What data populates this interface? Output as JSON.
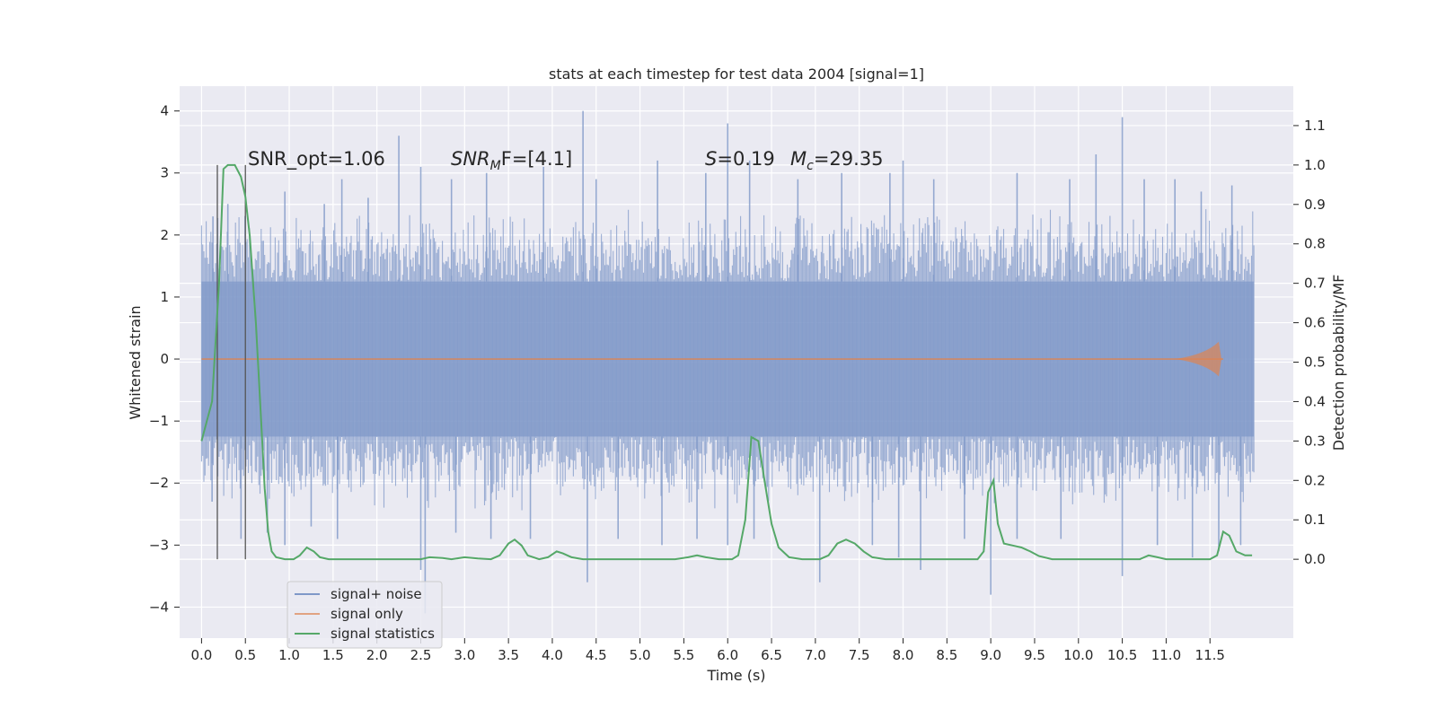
{
  "chart_data": {
    "type": "line",
    "title": "stats at each timestep for test data 2004 [signal=1]",
    "xlabel": "Time (s)",
    "ylabel": "Whitened strain",
    "y2label": "Detection probability/MF",
    "xlim": [
      -0.25,
      12.45
    ],
    "ylim": [
      -4.5,
      4.4
    ],
    "y2lim": [
      -0.2,
      1.2
    ],
    "grid": true,
    "legend_position": "bottom-left",
    "x_ticks": [
      "0.0",
      "0.5",
      "1.0",
      "1.5",
      "2.0",
      "2.5",
      "3.0",
      "3.5",
      "4.0",
      "4.5",
      "5.0",
      "5.5",
      "6.0",
      "6.5",
      "7.0",
      "7.5",
      "8.0",
      "8.5",
      "9.0",
      "9.5",
      "10.0",
      "10.5",
      "11.0",
      "11.5"
    ],
    "y_ticks": [
      "4",
      "3",
      "2",
      "1",
      "0",
      "−1",
      "−2",
      "−3",
      "−4"
    ],
    "y2_ticks": [
      "1.1",
      "1.0",
      "0.9",
      "0.8",
      "0.7",
      "0.6",
      "0.5",
      "0.4",
      "0.3",
      "0.2",
      "0.1",
      "0.0"
    ],
    "annotations": {
      "snr_opt": "SNR_opt=1.06",
      "snr_mf_main": "SNR",
      "snr_mf_sub": "M",
      "snr_mf_tail": "F=[4.1]",
      "s_main": "S",
      "s_tail": "=0.19",
      "mc_main": "M",
      "mc_sub": "c",
      "mc_tail": "=29.35"
    },
    "vlines_x": [
      0.18,
      0.5
    ],
    "series": [
      {
        "name": "signal+ noise",
        "color": "#7f98c8",
        "x_range": [
          0.0,
          12.0
        ],
        "envelope": {
          "core": 1.25,
          "typical_peak": 2.3
        },
        "peaks_top": [
          [
            0.13,
            2.3
          ],
          [
            0.3,
            2.5
          ],
          [
            0.95,
            2.7
          ],
          [
            1.4,
            2.5
          ],
          [
            1.6,
            2.9
          ],
          [
            1.9,
            2.6
          ],
          [
            2.25,
            3.6
          ],
          [
            2.5,
            3.1
          ],
          [
            2.85,
            2.9
          ],
          [
            3.25,
            3.0
          ],
          [
            3.9,
            3.1
          ],
          [
            4.35,
            4.0
          ],
          [
            4.5,
            2.9
          ],
          [
            5.2,
            3.2
          ],
          [
            5.75,
            3.0
          ],
          [
            6.0,
            3.8
          ],
          [
            6.25,
            3.2
          ],
          [
            6.8,
            2.9
          ],
          [
            7.3,
            3.0
          ],
          [
            7.85,
            3.0
          ],
          [
            8.0,
            3.2
          ],
          [
            8.35,
            2.9
          ],
          [
            9.3,
            3.0
          ],
          [
            9.9,
            2.9
          ],
          [
            10.2,
            3.3
          ],
          [
            10.5,
            3.9
          ],
          [
            10.75,
            2.9
          ],
          [
            11.1,
            2.9
          ],
          [
            11.4,
            2.7
          ],
          [
            11.75,
            2.8
          ]
        ],
        "peaks_bottom": [
          [
            0.12,
            -2.3
          ],
          [
            0.45,
            -2.9
          ],
          [
            0.75,
            -2.8
          ],
          [
            0.95,
            -3.0
          ],
          [
            1.25,
            -2.7
          ],
          [
            1.55,
            -2.9
          ],
          [
            2.5,
            -3.4
          ],
          [
            2.55,
            -4.1
          ],
          [
            2.9,
            -2.8
          ],
          [
            3.3,
            -2.9
          ],
          [
            3.75,
            -2.9
          ],
          [
            4.4,
            -3.6
          ],
          [
            4.75,
            -2.9
          ],
          [
            5.25,
            -3.0
          ],
          [
            5.65,
            -2.9
          ],
          [
            6.0,
            -3.0
          ],
          [
            6.3,
            -2.9
          ],
          [
            7.05,
            -3.6
          ],
          [
            7.65,
            -3.0
          ],
          [
            7.95,
            -3.2
          ],
          [
            8.2,
            -3.4
          ],
          [
            8.7,
            -2.9
          ],
          [
            9.0,
            -3.8
          ],
          [
            9.3,
            -2.9
          ],
          [
            9.8,
            -2.9
          ],
          [
            10.5,
            -3.5
          ],
          [
            10.9,
            -3.0
          ],
          [
            11.3,
            -3.2
          ],
          [
            11.6,
            -3.1
          ],
          [
            11.85,
            -3.0
          ]
        ]
      },
      {
        "name": "signal only",
        "color": "#dd8452",
        "x_range": [
          0.0,
          11.65
        ],
        "chirp_peak": {
          "x": 11.6,
          "amplitude": 0.28
        }
      },
      {
        "name": "signal statistics",
        "color": "#55a868",
        "axis": "right",
        "points": [
          [
            0.0,
            0.3
          ],
          [
            0.12,
            0.4
          ],
          [
            0.2,
            0.7
          ],
          [
            0.25,
            0.99
          ],
          [
            0.3,
            1.0
          ],
          [
            0.38,
            1.0
          ],
          [
            0.45,
            0.97
          ],
          [
            0.5,
            0.92
          ],
          [
            0.55,
            0.82
          ],
          [
            0.62,
            0.6
          ],
          [
            0.68,
            0.35
          ],
          [
            0.72,
            0.18
          ],
          [
            0.76,
            0.07
          ],
          [
            0.8,
            0.02
          ],
          [
            0.85,
            0.005
          ],
          [
            0.95,
            0.0
          ],
          [
            1.05,
            0.0
          ],
          [
            1.12,
            0.01
          ],
          [
            1.2,
            0.03
          ],
          [
            1.28,
            0.02
          ],
          [
            1.35,
            0.005
          ],
          [
            1.45,
            0.0
          ],
          [
            2.5,
            0.0
          ],
          [
            2.6,
            0.005
          ],
          [
            2.75,
            0.003
          ],
          [
            2.85,
            0.0
          ],
          [
            3.0,
            0.005
          ],
          [
            3.15,
            0.002
          ],
          [
            3.3,
            0.0
          ],
          [
            3.4,
            0.01
          ],
          [
            3.5,
            0.04
          ],
          [
            3.57,
            0.05
          ],
          [
            3.65,
            0.035
          ],
          [
            3.72,
            0.01
          ],
          [
            3.85,
            0.0
          ],
          [
            3.95,
            0.005
          ],
          [
            4.05,
            0.02
          ],
          [
            4.12,
            0.015
          ],
          [
            4.22,
            0.005
          ],
          [
            4.35,
            0.0
          ],
          [
            5.4,
            0.0
          ],
          [
            5.55,
            0.005
          ],
          [
            5.65,
            0.01
          ],
          [
            5.75,
            0.005
          ],
          [
            5.9,
            0.0
          ],
          [
            6.05,
            0.0
          ],
          [
            6.12,
            0.01
          ],
          [
            6.2,
            0.1
          ],
          [
            6.27,
            0.31
          ],
          [
            6.35,
            0.3
          ],
          [
            6.42,
            0.2
          ],
          [
            6.5,
            0.09
          ],
          [
            6.58,
            0.03
          ],
          [
            6.7,
            0.005
          ],
          [
            6.85,
            0.0
          ],
          [
            7.05,
            0.0
          ],
          [
            7.15,
            0.01
          ],
          [
            7.25,
            0.04
          ],
          [
            7.35,
            0.05
          ],
          [
            7.45,
            0.04
          ],
          [
            7.55,
            0.02
          ],
          [
            7.65,
            0.005
          ],
          [
            7.8,
            0.0
          ],
          [
            8.85,
            0.0
          ],
          [
            8.92,
            0.02
          ],
          [
            8.97,
            0.17
          ],
          [
            9.03,
            0.2
          ],
          [
            9.08,
            0.09
          ],
          [
            9.15,
            0.04
          ],
          [
            9.25,
            0.035
          ],
          [
            9.35,
            0.03
          ],
          [
            9.45,
            0.02
          ],
          [
            9.55,
            0.008
          ],
          [
            9.7,
            0.0
          ],
          [
            10.7,
            0.0
          ],
          [
            10.8,
            0.01
          ],
          [
            10.9,
            0.005
          ],
          [
            11.0,
            0.0
          ],
          [
            11.5,
            0.0
          ],
          [
            11.58,
            0.01
          ],
          [
            11.65,
            0.07
          ],
          [
            11.72,
            0.06
          ],
          [
            11.8,
            0.02
          ],
          [
            11.9,
            0.01
          ],
          [
            11.98,
            0.01
          ]
        ]
      }
    ]
  }
}
